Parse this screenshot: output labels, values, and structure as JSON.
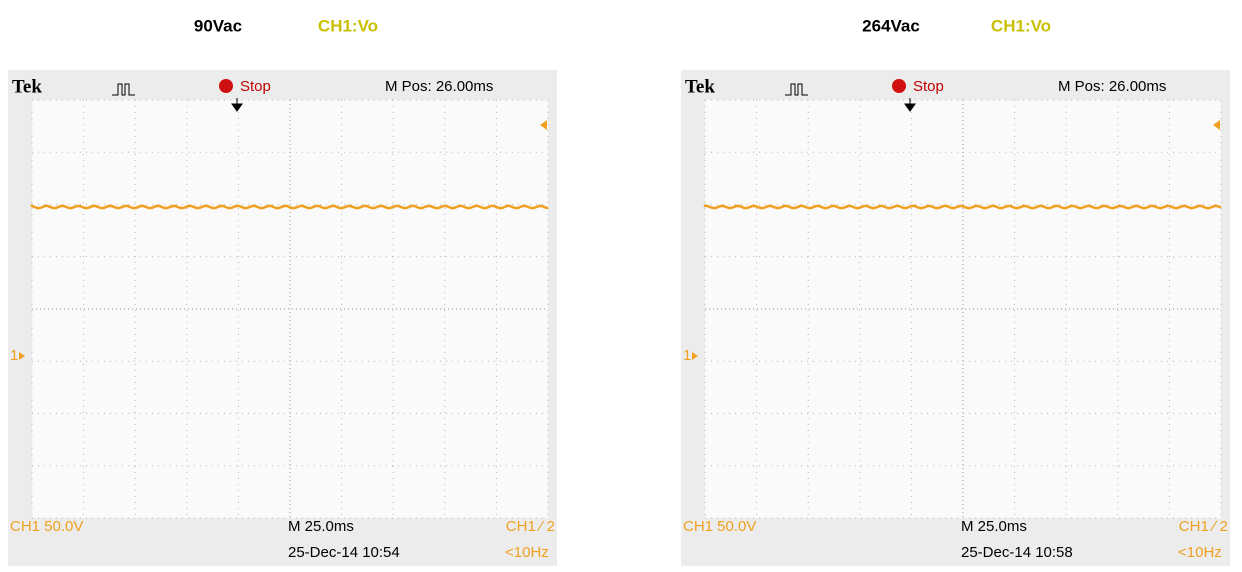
{
  "panels": [
    {
      "header": {
        "voltage": "90Vac",
        "channel": "CH1:Vo"
      },
      "scope": {
        "brand": "Tek",
        "status": "Stop",
        "mpos": "M Pos: 26.00ms",
        "ch_scale": "CH1  50.0V",
        "timebase": "M 25.0ms",
        "trigger": "CH1 ∕ 2",
        "datetime": "25-Dec-14 10:54",
        "freq": "<10Hz",
        "ch_marker": "1"
      }
    },
    {
      "header": {
        "voltage": "264Vac",
        "channel": "CH1:Vo"
      },
      "scope": {
        "brand": "Tek",
        "status": "Stop",
        "mpos": "M Pos: 26.00ms",
        "ch_scale": "CH1  50.0V",
        "timebase": "M 25.0ms",
        "trigger": "CH1 ∕ 2",
        "datetime": "25-Dec-14 10:58",
        "freq": "<10Hz",
        "ch_marker": "1"
      }
    }
  ]
}
